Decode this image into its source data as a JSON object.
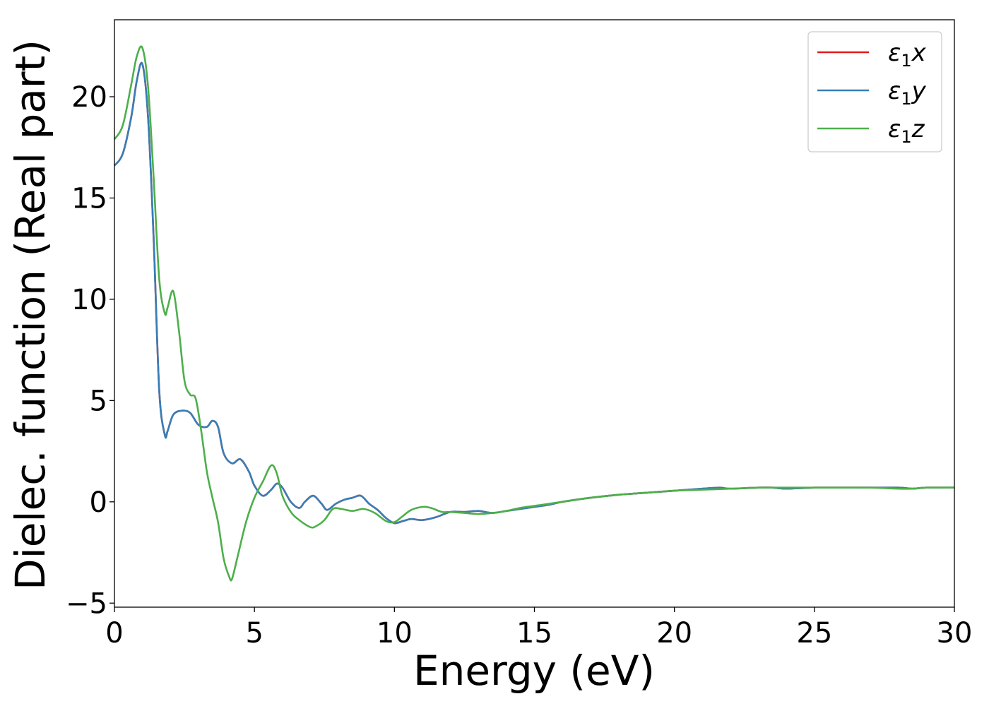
{
  "chart_data": {
    "type": "line",
    "xlabel": "Energy (eV)",
    "ylabel": "Dielec. function (Real part)",
    "xlim": [
      0,
      30
    ],
    "ylim": [
      -5.2,
      23.8
    ],
    "xticks": [
      0,
      5,
      10,
      15,
      20,
      25,
      30
    ],
    "xtick_labels": [
      "0",
      "5",
      "10",
      "15",
      "20",
      "25",
      "30"
    ],
    "yticks": [
      -5,
      0,
      5,
      10,
      15,
      20
    ],
    "ytick_labels": [
      "−5",
      "0",
      "5",
      "10",
      "15",
      "20"
    ],
    "grid": false,
    "legend_position": "top-right",
    "series": [
      {
        "name": "ε",
        "name_sub": "1",
        "name_suffix": "x",
        "color": "#e41a1c",
        "x": [
          0,
          0.3,
          0.6,
          0.8,
          1.0,
          1.2,
          1.4,
          1.6,
          1.8,
          1.9,
          2.1,
          2.4,
          2.7,
          3.0,
          3.3,
          3.5,
          3.7,
          3.9,
          4.2,
          4.5,
          4.8,
          5.0,
          5.3,
          5.6,
          5.8,
          6.0,
          6.3,
          6.6,
          6.8,
          7.1,
          7.4,
          7.6,
          7.9,
          8.2,
          8.5,
          8.8,
          9.1,
          9.4,
          9.7,
          10.0,
          10.3,
          10.6,
          11.0,
          11.5,
          12.0,
          12.5,
          13.0,
          13.5,
          14.0,
          14.5,
          15.0,
          15.5,
          16.0,
          17.0,
          18.0,
          19.0,
          20.0,
          21.0,
          21.6,
          22.0,
          23.0,
          23.5,
          24.0,
          25.0,
          26.0,
          27.0,
          28.0,
          28.5,
          29.0,
          30.0
        ],
        "values": [
          16.6,
          17.2,
          19.0,
          20.8,
          21.6,
          19.0,
          13.0,
          5.5,
          3.3,
          3.5,
          4.3,
          4.5,
          4.4,
          3.8,
          3.7,
          4.0,
          3.7,
          2.4,
          1.9,
          2.1,
          1.5,
          0.8,
          0.3,
          0.6,
          0.9,
          0.7,
          0.0,
          -0.3,
          0.0,
          0.3,
          -0.1,
          -0.4,
          -0.1,
          0.1,
          0.2,
          0.3,
          -0.1,
          -0.4,
          -0.8,
          -1.05,
          -0.95,
          -0.85,
          -0.9,
          -0.75,
          -0.5,
          -0.5,
          -0.45,
          -0.55,
          -0.45,
          -0.35,
          -0.25,
          -0.15,
          0.0,
          0.2,
          0.35,
          0.45,
          0.55,
          0.65,
          0.7,
          0.65,
          0.7,
          0.7,
          0.65,
          0.7,
          0.7,
          0.7,
          0.7,
          0.65,
          0.7,
          0.7
        ]
      },
      {
        "name": "ε",
        "name_sub": "1",
        "name_suffix": "y",
        "color": "#377eb8",
        "x": [
          0,
          0.3,
          0.6,
          0.8,
          1.0,
          1.2,
          1.4,
          1.6,
          1.8,
          1.9,
          2.1,
          2.4,
          2.7,
          3.0,
          3.3,
          3.5,
          3.7,
          3.9,
          4.2,
          4.5,
          4.8,
          5.0,
          5.3,
          5.6,
          5.8,
          6.0,
          6.3,
          6.6,
          6.8,
          7.1,
          7.4,
          7.6,
          7.9,
          8.2,
          8.5,
          8.8,
          9.1,
          9.4,
          9.7,
          10.0,
          10.3,
          10.6,
          11.0,
          11.5,
          12.0,
          12.5,
          13.0,
          13.5,
          14.0,
          14.5,
          15.0,
          15.5,
          16.0,
          17.0,
          18.0,
          19.0,
          20.0,
          21.0,
          21.6,
          22.0,
          23.0,
          23.5,
          24.0,
          25.0,
          26.0,
          27.0,
          28.0,
          28.5,
          29.0,
          30.0
        ],
        "values": [
          16.6,
          17.2,
          19.0,
          20.8,
          21.6,
          19.0,
          13.0,
          5.5,
          3.3,
          3.5,
          4.3,
          4.5,
          4.4,
          3.8,
          3.7,
          4.0,
          3.7,
          2.4,
          1.9,
          2.1,
          1.5,
          0.8,
          0.3,
          0.6,
          0.9,
          0.7,
          0.0,
          -0.3,
          0.0,
          0.3,
          -0.1,
          -0.4,
          -0.1,
          0.1,
          0.2,
          0.3,
          -0.1,
          -0.4,
          -0.8,
          -1.05,
          -0.95,
          -0.85,
          -0.9,
          -0.75,
          -0.5,
          -0.5,
          -0.45,
          -0.55,
          -0.45,
          -0.35,
          -0.25,
          -0.15,
          0.0,
          0.2,
          0.35,
          0.45,
          0.55,
          0.65,
          0.7,
          0.65,
          0.7,
          0.7,
          0.65,
          0.7,
          0.7,
          0.7,
          0.7,
          0.65,
          0.7,
          0.7
        ]
      },
      {
        "name": "ε",
        "name_sub": "1",
        "name_suffix": "z",
        "color": "#4daf4a",
        "x": [
          0,
          0.3,
          0.6,
          0.8,
          1.0,
          1.2,
          1.4,
          1.6,
          1.8,
          1.9,
          2.1,
          2.3,
          2.5,
          2.7,
          2.9,
          3.1,
          3.3,
          3.5,
          3.7,
          3.9,
          4.1,
          4.2,
          4.4,
          4.7,
          5.0,
          5.3,
          5.6,
          5.8,
          6.0,
          6.3,
          6.6,
          7.0,
          7.2,
          7.5,
          7.8,
          8.1,
          8.5,
          8.9,
          9.3,
          9.7,
          10.0,
          10.3,
          10.6,
          11.0,
          11.3,
          11.7,
          12.0,
          12.5,
          13.0,
          13.5,
          14.0,
          14.5,
          15.0,
          15.5,
          16.0,
          17.0,
          18.0,
          19.0,
          20.0,
          21.0,
          22.0,
          23.0,
          24.0,
          25.0,
          26.0,
          27.0,
          28.0,
          28.5,
          29.0,
          30.0
        ],
        "values": [
          17.9,
          18.6,
          20.6,
          22.0,
          22.4,
          20.5,
          16.0,
          11.0,
          9.3,
          9.6,
          10.4,
          8.5,
          6.0,
          5.3,
          5.1,
          3.5,
          1.5,
          0.2,
          -1.0,
          -2.8,
          -3.7,
          -3.8,
          -2.7,
          -1.0,
          0.2,
          1.0,
          1.8,
          1.4,
          0.3,
          -0.5,
          -0.9,
          -1.25,
          -1.2,
          -0.9,
          -0.35,
          -0.35,
          -0.45,
          -0.35,
          -0.55,
          -0.95,
          -1.0,
          -0.7,
          -0.4,
          -0.25,
          -0.3,
          -0.5,
          -0.5,
          -0.55,
          -0.6,
          -0.55,
          -0.45,
          -0.3,
          -0.2,
          -0.1,
          0.0,
          0.2,
          0.35,
          0.45,
          0.55,
          0.6,
          0.65,
          0.7,
          0.7,
          0.7,
          0.7,
          0.7,
          0.65,
          0.65,
          0.7,
          0.7
        ]
      }
    ]
  }
}
